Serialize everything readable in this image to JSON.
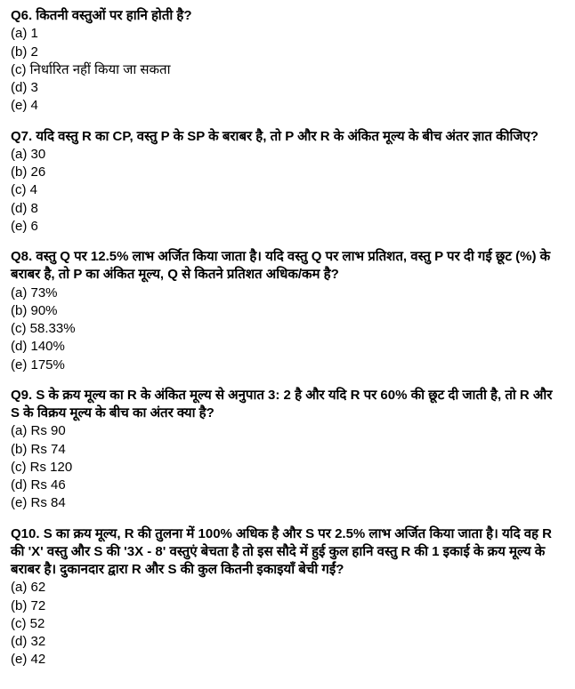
{
  "questions": [
    {
      "number": "Q6.",
      "text": "कितनी वस्तुओं पर हानि होती है?",
      "options": {
        "a": "(a) 1",
        "b": "(b) 2",
        "c": "(c) निर्धारित नहीं किया जा सकता",
        "d": "(d) 3",
        "e": "(e) 4"
      }
    },
    {
      "number": "Q7.",
      "text": "यदि वस्तु R का CP, वस्तु P के SP के बराबर है, तो P और R के अंकित मूल्य के बीच अंतर ज्ञात कीजिए?",
      "options": {
        "a": "(a) 30",
        "b": "(b) 26",
        "c": "(c) 4",
        "d": "(d) 8",
        "e": "(e) 6"
      }
    },
    {
      "number": "Q8.",
      "text": "वस्तु Q पर 12.5% लाभ अर्जित किया जाता है। यदि वस्तु Q पर लाभ प्रतिशत, वस्तु P पर दी गई छूट (%) के बराबर है, तो P का अंकित मूल्य, Q से कितने प्रतिशत अधिक/कम है?",
      "options": {
        "a": "(a) 73%",
        "b": "(b) 90%",
        "c": "(c) 58.33%",
        "d": "(d) 140%",
        "e": "(e) 175%"
      }
    },
    {
      "number": "Q9.",
      "text": "S के क्रय मूल्य का R के अंकित मूल्य से अनुपात 3: 2 है और यदि R पर 60% की छूट दी जाती है, तो R और S के विक्रय मूल्य के बीच का अंतर क्या है?",
      "options": {
        "a": "(a) Rs 90",
        "b": "(b) Rs 74",
        "c": "(c) Rs 120",
        "d": "(d) Rs 46",
        "e": "(e) Rs 84"
      }
    },
    {
      "number": "Q10.",
      "text": "S का क्रय मूल्य, R की तुलना में 100% अधिक है और S पर 2.5% लाभ अर्जित किया जाता है। यदि वह R की 'X' वस्तु और S की '3X - 8' वस्तुएं बेचता है तो इस सौदे में हुई कुल हानि वस्तु R की 1 इकाई के क्रय मूल्य के बराबर है। दुकानदार द्वारा R और S की कुल कितनी इकाइयाँ बेची गईं?",
      "options": {
        "a": "(a) 62",
        "b": "(b) 72",
        "c": "(c) 52",
        "d": "(d) 32",
        "e": "(e) 42"
      }
    }
  ]
}
